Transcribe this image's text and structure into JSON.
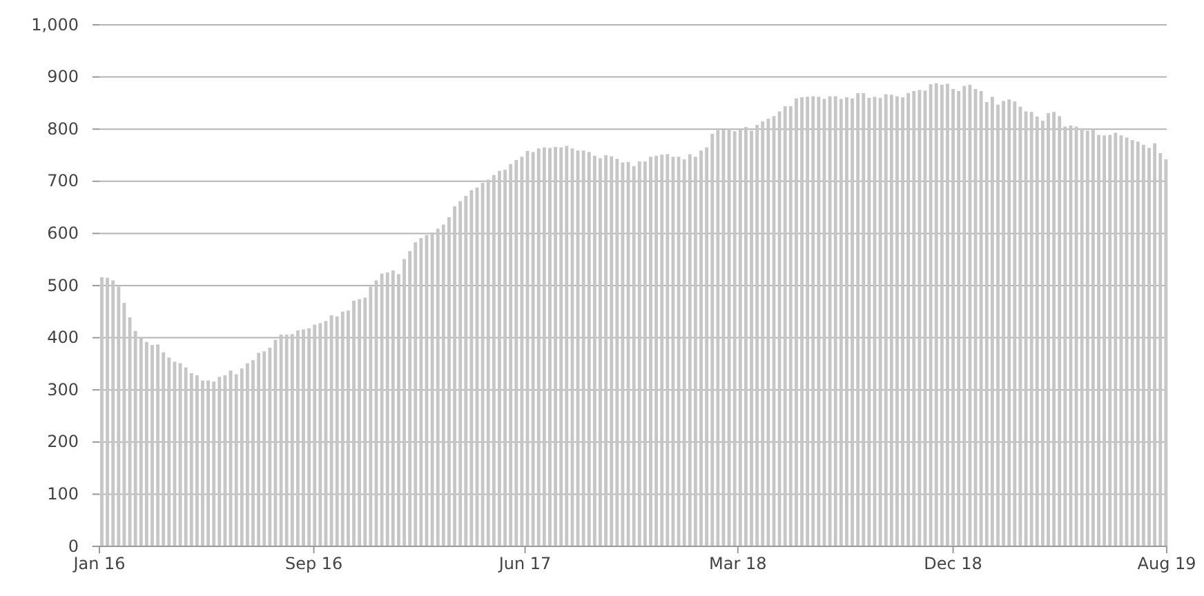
{
  "chart_data": {
    "type": "bar",
    "color": "#c6c6c6",
    "grid": "y",
    "x": [
      "2016-01-08",
      "2016-01-15",
      "2016-01-22",
      "2016-01-29",
      "2016-02-05",
      "2016-02-12",
      "2016-02-19",
      "2016-02-26",
      "2016-03-04",
      "2016-03-11",
      "2016-03-18",
      "2016-03-25",
      "2016-04-01",
      "2016-04-08",
      "2016-04-15",
      "2016-04-22",
      "2016-04-29",
      "2016-05-06",
      "2016-05-13",
      "2016-05-20",
      "2016-05-27",
      "2016-06-03",
      "2016-06-10",
      "2016-06-17",
      "2016-06-24",
      "2016-07-01",
      "2016-07-08",
      "2016-07-15",
      "2016-07-22",
      "2016-07-29",
      "2016-08-05",
      "2016-08-12",
      "2016-08-19",
      "2016-08-26",
      "2016-09-02",
      "2016-09-09",
      "2016-09-16",
      "2016-09-23",
      "2016-09-30",
      "2016-10-07",
      "2016-10-14",
      "2016-10-21",
      "2016-10-28",
      "2016-11-04",
      "2016-11-11",
      "2016-11-18",
      "2016-11-25",
      "2016-12-02",
      "2016-12-09",
      "2016-12-16",
      "2016-12-23",
      "2016-12-30",
      "2017-01-06",
      "2017-01-13",
      "2017-01-20",
      "2017-01-27",
      "2017-02-03",
      "2017-02-10",
      "2017-02-17",
      "2017-02-24",
      "2017-03-03",
      "2017-03-10",
      "2017-03-17",
      "2017-03-24",
      "2017-03-31",
      "2017-04-07",
      "2017-04-14",
      "2017-04-21",
      "2017-04-28",
      "2017-05-05",
      "2017-05-12",
      "2017-05-19",
      "2017-05-26",
      "2017-06-02",
      "2017-06-09",
      "2017-06-16",
      "2017-06-23",
      "2017-06-30",
      "2017-07-07",
      "2017-07-14",
      "2017-07-21",
      "2017-07-28",
      "2017-08-04",
      "2017-08-11",
      "2017-08-18",
      "2017-08-25",
      "2017-09-01",
      "2017-09-08",
      "2017-09-15",
      "2017-09-22",
      "2017-09-29",
      "2017-10-06",
      "2017-10-13",
      "2017-10-20",
      "2017-10-27",
      "2017-11-03",
      "2017-11-10",
      "2017-11-17",
      "2017-11-24",
      "2017-12-01",
      "2017-12-08",
      "2017-12-15",
      "2017-12-22",
      "2017-12-29",
      "2018-01-05",
      "2018-01-12",
      "2018-01-19",
      "2018-01-26",
      "2018-02-02",
      "2018-02-09",
      "2018-02-16",
      "2018-02-23",
      "2018-03-02",
      "2018-03-09",
      "2018-03-16",
      "2018-03-23",
      "2018-03-30",
      "2018-04-06",
      "2018-04-13",
      "2018-04-20",
      "2018-04-27",
      "2018-05-04",
      "2018-05-11",
      "2018-05-18",
      "2018-05-25",
      "2018-06-01",
      "2018-06-08",
      "2018-06-15",
      "2018-06-22",
      "2018-06-29",
      "2018-07-06",
      "2018-07-13",
      "2018-07-20",
      "2018-07-27",
      "2018-08-03",
      "2018-08-10",
      "2018-08-17",
      "2018-08-24",
      "2018-08-31",
      "2018-09-07",
      "2018-09-14",
      "2018-09-21",
      "2018-09-28",
      "2018-10-05",
      "2018-10-12",
      "2018-10-19",
      "2018-10-26",
      "2018-11-02",
      "2018-11-09",
      "2018-11-16",
      "2018-11-23",
      "2018-11-30",
      "2018-12-07",
      "2018-12-14",
      "2018-12-21",
      "2018-12-28",
      "2019-01-04",
      "2019-01-11",
      "2019-01-18",
      "2019-01-25",
      "2019-02-01",
      "2019-02-08",
      "2019-02-15",
      "2019-02-22",
      "2019-03-01",
      "2019-03-08",
      "2019-03-15",
      "2019-03-22",
      "2019-03-29",
      "2019-04-05",
      "2019-04-12",
      "2019-04-19",
      "2019-04-26",
      "2019-05-03",
      "2019-05-10",
      "2019-05-17",
      "2019-05-24",
      "2019-05-31",
      "2019-06-07",
      "2019-06-14",
      "2019-06-21",
      "2019-06-28",
      "2019-07-05",
      "2019-07-12",
      "2019-07-19",
      "2019-07-26",
      "2019-08-02",
      "2019-08-09",
      "2019-08-16",
      "2019-08-23",
      "2019-08-30"
    ],
    "values": [
      516,
      515,
      510,
      498,
      467,
      439,
      413,
      400,
      392,
      386,
      387,
      372,
      362,
      354,
      351,
      343,
      332,
      328,
      318,
      318,
      316,
      325,
      328,
      337,
      330,
      341,
      351,
      357,
      371,
      374,
      381,
      396,
      406,
      406,
      407,
      414,
      416,
      418,
      425,
      428,
      432,
      443,
      441,
      450,
      452,
      471,
      474,
      477,
      498,
      510,
      523,
      525,
      529,
      522,
      551,
      566,
      583,
      591,
      597,
      602,
      609,
      617,
      631,
      652,
      662,
      672,
      683,
      688,
      697,
      703,
      712,
      720,
      722,
      733,
      741,
      747,
      758,
      756,
      763,
      765,
      764,
      766,
      765,
      768,
      763,
      759,
      759,
      756,
      749,
      744,
      750,
      748,
      743,
      736,
      737,
      729,
      738,
      738,
      747,
      749,
      751,
      752,
      747,
      747,
      742,
      752,
      747,
      759,
      765,
      791,
      798,
      799,
      800,
      796,
      800,
      804,
      797,
      808,
      815,
      820,
      825,
      834,
      844,
      844,
      859,
      861,
      862,
      863,
      862,
      858,
      863,
      863,
      858,
      861,
      859,
      869,
      869,
      860,
      862,
      860,
      867,
      866,
      863,
      861,
      869,
      873,
      875,
      874,
      886,
      888,
      885,
      887,
      877,
      873,
      883,
      885,
      877,
      873,
      852,
      862,
      847,
      854,
      857,
      853,
      843,
      834,
      833,
      824,
      816,
      831,
      833,
      825,
      805,
      807,
      805,
      802,
      797,
      800,
      789,
      788,
      789,
      793,
      788,
      784,
      779,
      776,
      770,
      764,
      773,
      754,
      742
    ],
    "xlim": [
      "2016-01-05",
      "2019-08-31"
    ],
    "xticks": [
      {
        "value": "2016-01-05",
        "label": "Jan 16"
      },
      {
        "value": "2016-09-29",
        "label": "Sep 16"
      },
      {
        "value": "2017-06-20",
        "label": "Jun 17"
      },
      {
        "value": "2018-03-13",
        "label": "Mar 18"
      },
      {
        "value": "2018-12-07",
        "label": "Dec 18"
      },
      {
        "value": "2019-08-31",
        "label": "Aug 19"
      }
    ],
    "ylim": [
      0,
      1000
    ],
    "yticks": [
      0,
      100,
      200,
      300,
      400,
      500,
      600,
      700,
      800,
      900,
      {
        "value": 1000,
        "label": "1,000"
      }
    ]
  }
}
